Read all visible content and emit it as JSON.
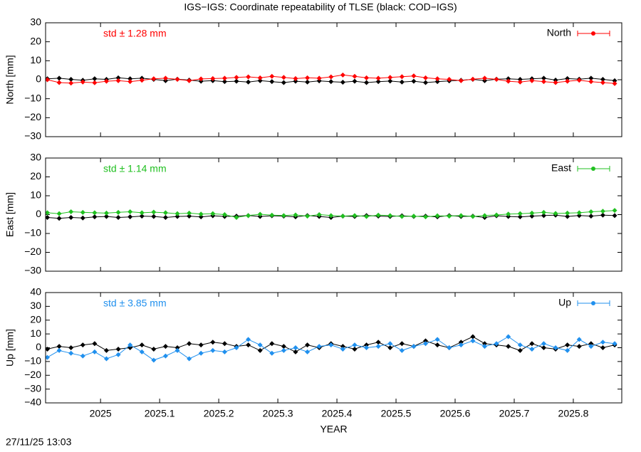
{
  "title": "IGS−IGS: Coordinate repeatability of TLSE (black: COD−IGS)",
  "timestamp": "27/11/25 13:03",
  "chart_data": [
    {
      "type": "line",
      "ylabel": "North [mm]",
      "annotation": "std ± 1.28 mm",
      "xlim": [
        2024.907,
        2025.882
      ],
      "xticks": [
        2025,
        2025.1,
        2025.2,
        2025.3,
        2025.4,
        2025.5,
        2025.6,
        2025.7,
        2025.8
      ],
      "ylim": [
        -30,
        30
      ],
      "yticks": [
        30,
        20,
        10,
        0,
        {
          "value": -10,
          "label": "−10"
        },
        {
          "value": -20,
          "label": "−20"
        },
        {
          "value": -30,
          "label": "−30"
        }
      ],
      "x": [
        2024.91,
        2024.93,
        2024.95,
        2024.97,
        2024.99,
        2025.01,
        2025.03,
        2025.05,
        2025.07,
        2025.09,
        2025.11,
        2025.13,
        2025.15,
        2025.17,
        2025.19,
        2025.21,
        2025.23,
        2025.25,
        2025.27,
        2025.29,
        2025.31,
        2025.33,
        2025.35,
        2025.37,
        2025.39,
        2025.41,
        2025.43,
        2025.45,
        2025.47,
        2025.49,
        2025.51,
        2025.53,
        2025.55,
        2025.57,
        2025.59,
        2025.61,
        2025.63,
        2025.65,
        2025.67,
        2025.69,
        2025.71,
        2025.73,
        2025.75,
        2025.77,
        2025.79,
        2025.81,
        2025.83,
        2025.85,
        2025.87
      ],
      "series": [
        {
          "color": "#000000",
          "values": [
            0.5,
            0.8,
            0.2,
            -0.3,
            0.5,
            0.2,
            1.0,
            0.5,
            0.8,
            0.2,
            -0.5,
            0.3,
            -0.2,
            -0.8,
            -0.5,
            -1.0,
            -0.8,
            -1.2,
            -0.5,
            -1.0,
            -1.5,
            -0.8,
            -1.2,
            -0.6,
            -1.0,
            -1.3,
            -0.8,
            -1.5,
            -1.0,
            -0.7,
            -1.2,
            -0.8,
            -1.5,
            -1.0,
            -0.6,
            -0.3,
            0.2,
            -0.5,
            0.3,
            0.5,
            0.2,
            0.5,
            0.8,
            -0.2,
            0.6,
            0.3,
            0.8,
            0.2,
            -0.5
          ]
        },
        {
          "name": "North",
          "color": "#ff0000",
          "values": [
            0,
            -1.5,
            -1.8,
            -1.2,
            -1.6,
            -0.8,
            -0.5,
            -1.0,
            -0.3,
            0.5,
            0.8,
            0.2,
            -0.5,
            0.4,
            0.6,
            0.8,
            1.2,
            1.5,
            1.0,
            1.8,
            1.2,
            0.6,
            1.0,
            0.8,
            1.5,
            2.5,
            1.8,
            1.0,
            0.8,
            1.2,
            1.6,
            2.0,
            1.0,
            0.5,
            0.2,
            -0.5,
            0.3,
            0.8,
            0.2,
            -0.8,
            -1.2,
            -0.5,
            -1.0,
            -1.5,
            -0.8,
            -0.3,
            -1.0,
            -1.5,
            -2.0
          ]
        }
      ]
    },
    {
      "type": "line",
      "ylabel": "East [mm]",
      "annotation": "std ± 1.14 mm",
      "xlim": [
        2024.907,
        2025.882
      ],
      "xticks": [
        2025,
        2025.1,
        2025.2,
        2025.3,
        2025.4,
        2025.5,
        2025.6,
        2025.7,
        2025.8
      ],
      "ylim": [
        -30,
        30
      ],
      "yticks": [
        30,
        20,
        10,
        0,
        {
          "value": -10,
          "label": "−10"
        },
        {
          "value": -20,
          "label": "−20"
        },
        {
          "value": -30,
          "label": "−30"
        }
      ],
      "x": [
        2024.91,
        2024.93,
        2024.95,
        2024.97,
        2024.99,
        2025.01,
        2025.03,
        2025.05,
        2025.07,
        2025.09,
        2025.11,
        2025.13,
        2025.15,
        2025.17,
        2025.19,
        2025.21,
        2025.23,
        2025.25,
        2025.27,
        2025.29,
        2025.31,
        2025.33,
        2025.35,
        2025.37,
        2025.39,
        2025.41,
        2025.43,
        2025.45,
        2025.47,
        2025.49,
        2025.51,
        2025.53,
        2025.55,
        2025.57,
        2025.59,
        2025.61,
        2025.63,
        2025.65,
        2025.67,
        2025.69,
        2025.71,
        2025.73,
        2025.75,
        2025.77,
        2025.79,
        2025.81,
        2025.83,
        2025.85,
        2025.87
      ],
      "series": [
        {
          "color": "#000000",
          "values": [
            -1.5,
            -2.0,
            -1.5,
            -1.8,
            -1.2,
            -1.0,
            -1.5,
            -1.2,
            -0.8,
            -1.0,
            -1.5,
            -1.0,
            -0.8,
            -1.2,
            -0.6,
            -1.0,
            -0.8,
            -0.5,
            -1.0,
            -0.6,
            -0.8,
            -1.2,
            -0.5,
            -1.0,
            -1.5,
            -0.8,
            -1.0,
            -0.5,
            -0.8,
            -1.0,
            -0.6,
            -1.0,
            -0.8,
            -1.2,
            -0.5,
            -1.0,
            -0.8,
            -1.5,
            -0.6,
            -1.0,
            -1.2,
            -0.8,
            -0.5,
            -0.3,
            -1.0,
            -0.5,
            -0.8,
            -0.3,
            -0.5
          ]
        },
        {
          "name": "East",
          "color": "#20c020",
          "values": [
            1.0,
            0.5,
            1.5,
            1.2,
            1.0,
            0.8,
            1.2,
            1.5,
            1.0,
            1.3,
            1.0,
            0.5,
            0.8,
            0.3,
            0.5,
            0,
            -1.5,
            -0.5,
            0.2,
            -0.3,
            -0.5,
            -0.2,
            -0.8,
            0.0,
            -0.5,
            -0.8,
            -0.5,
            -1.0,
            -0.3,
            -0.5,
            -1.0,
            -0.8,
            -1.2,
            -0.6,
            -0.8,
            -0.5,
            -1.0,
            -0.5,
            -0.2,
            0.3,
            0.5,
            0.8,
            1.2,
            0.6,
            0.8,
            1.0,
            1.5,
            1.8,
            2.2
          ]
        }
      ]
    },
    {
      "type": "line",
      "ylabel": "Up [mm]",
      "annotation": "std ± 3.85 mm",
      "xlabel": "YEAR",
      "xlim": [
        2024.907,
        2025.882
      ],
      "xticks": [
        2025,
        2025.1,
        2025.2,
        2025.3,
        2025.4,
        2025.5,
        2025.6,
        2025.7,
        2025.8
      ],
      "ylim": [
        -40,
        40
      ],
      "yticks": [
        40,
        30,
        20,
        10,
        0,
        {
          "value": -10,
          "label": "−10"
        },
        {
          "value": -20,
          "label": "−20"
        },
        {
          "value": -30,
          "label": "−30"
        },
        {
          "value": -40,
          "label": "−40"
        }
      ],
      "x": [
        2024.91,
        2024.93,
        2024.95,
        2024.97,
        2024.99,
        2025.01,
        2025.03,
        2025.05,
        2025.07,
        2025.09,
        2025.11,
        2025.13,
        2025.15,
        2025.17,
        2025.19,
        2025.21,
        2025.23,
        2025.25,
        2025.27,
        2025.29,
        2025.31,
        2025.33,
        2025.35,
        2025.37,
        2025.39,
        2025.41,
        2025.43,
        2025.45,
        2025.47,
        2025.49,
        2025.51,
        2025.53,
        2025.55,
        2025.57,
        2025.59,
        2025.61,
        2025.63,
        2025.65,
        2025.67,
        2025.69,
        2025.71,
        2025.73,
        2025.75,
        2025.77,
        2025.79,
        2025.81,
        2025.83,
        2025.85,
        2025.87
      ],
      "series": [
        {
          "color": "#000000",
          "values": [
            -1,
            1,
            0,
            2,
            3,
            -2,
            -1,
            0,
            2,
            -1,
            1,
            0,
            3,
            2,
            4,
            3,
            1,
            2,
            -2,
            3,
            1,
            -3,
            2,
            0,
            3,
            1,
            -1,
            2,
            4,
            0,
            3,
            1,
            5,
            2,
            0,
            4,
            8,
            3,
            2,
            1,
            -2,
            3,
            0,
            -1,
            2,
            1,
            3,
            0,
            2
          ]
        },
        {
          "name": "Up",
          "color": "#2090ee",
          "values": [
            -7,
            -2,
            -4,
            -6,
            -3,
            -8,
            -5,
            2,
            -3,
            -9,
            -6,
            -2,
            -8,
            -4,
            -2,
            -3,
            0,
            6,
            2,
            -4,
            -2,
            0,
            -3,
            1,
            2,
            -1,
            2,
            0,
            1,
            3,
            -2,
            1,
            3,
            6,
            0,
            2,
            5,
            1,
            3,
            8,
            2,
            -1,
            3,
            0,
            -2,
            6,
            1,
            4,
            3
          ]
        }
      ]
    }
  ]
}
